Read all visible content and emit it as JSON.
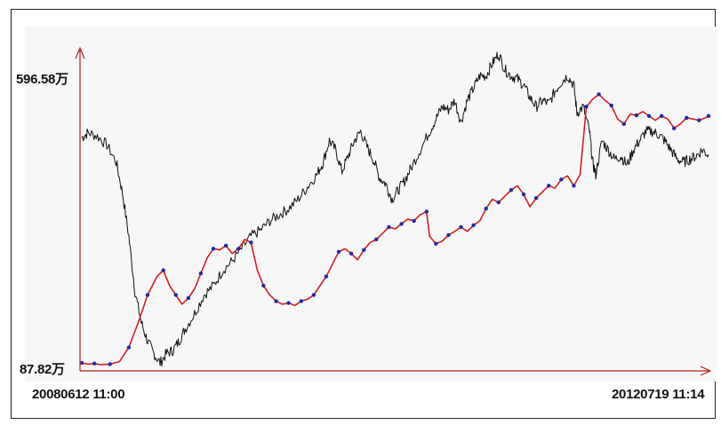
{
  "chart_data": {
    "type": "line",
    "y_axis": {
      "max_label": "596.58万",
      "min_label": "87.82万",
      "max": 596.58,
      "min": 87.82
    },
    "x_axis": {
      "start_label": "20080612 11:00",
      "end_label": "20120719 11:14"
    },
    "x_range": [
      0,
      1
    ],
    "series": [
      {
        "style": "black",
        "color": "#111111",
        "values": [
          [
            0.0,
            460
          ],
          [
            0.01,
            468
          ],
          [
            0.025,
            462
          ],
          [
            0.04,
            448
          ],
          [
            0.055,
            420
          ],
          [
            0.065,
            370
          ],
          [
            0.075,
            300
          ],
          [
            0.085,
            210
          ],
          [
            0.095,
            160
          ],
          [
            0.105,
            130
          ],
          [
            0.115,
            110
          ],
          [
            0.125,
            95
          ],
          [
            0.135,
            110
          ],
          [
            0.145,
            115
          ],
          [
            0.155,
            130
          ],
          [
            0.165,
            150
          ],
          [
            0.18,
            175
          ],
          [
            0.195,
            205
          ],
          [
            0.21,
            220
          ],
          [
            0.225,
            245
          ],
          [
            0.24,
            260
          ],
          [
            0.255,
            280
          ],
          [
            0.27,
            300
          ],
          [
            0.285,
            310
          ],
          [
            0.3,
            325
          ],
          [
            0.315,
            335
          ],
          [
            0.33,
            345
          ],
          [
            0.345,
            360
          ],
          [
            0.36,
            380
          ],
          [
            0.375,
            400
          ],
          [
            0.385,
            420
          ],
          [
            0.395,
            455
          ],
          [
            0.405,
            440
          ],
          [
            0.415,
            405
          ],
          [
            0.425,
            430
          ],
          [
            0.435,
            455
          ],
          [
            0.445,
            470
          ],
          [
            0.455,
            445
          ],
          [
            0.465,
            425
          ],
          [
            0.475,
            395
          ],
          [
            0.485,
            385
          ],
          [
            0.495,
            360
          ],
          [
            0.505,
            375
          ],
          [
            0.515,
            390
          ],
          [
            0.525,
            410
          ],
          [
            0.54,
            440
          ],
          [
            0.555,
            470
          ],
          [
            0.565,
            490
          ],
          [
            0.575,
            510
          ],
          [
            0.585,
            505
          ],
          [
            0.595,
            520
          ],
          [
            0.605,
            485
          ],
          [
            0.615,
            520
          ],
          [
            0.625,
            540
          ],
          [
            0.635,
            560
          ],
          [
            0.645,
            560
          ],
          [
            0.655,
            580
          ],
          [
            0.665,
            596
          ],
          [
            0.675,
            570
          ],
          [
            0.685,
            560
          ],
          [
            0.695,
            555
          ],
          [
            0.705,
            545
          ],
          [
            0.715,
            525
          ],
          [
            0.725,
            510
          ],
          [
            0.735,
            520
          ],
          [
            0.745,
            515
          ],
          [
            0.755,
            535
          ],
          [
            0.765,
            550
          ],
          [
            0.775,
            560
          ],
          [
            0.785,
            545
          ],
          [
            0.79,
            500
          ],
          [
            0.8,
            510
          ],
          [
            0.81,
            470
          ],
          [
            0.815,
            420
          ],
          [
            0.82,
            400
          ],
          [
            0.83,
            455
          ],
          [
            0.84,
            440
          ],
          [
            0.85,
            425
          ],
          [
            0.86,
            430
          ],
          [
            0.87,
            415
          ],
          [
            0.88,
            440
          ],
          [
            0.89,
            455
          ],
          [
            0.9,
            470
          ],
          [
            0.91,
            470
          ],
          [
            0.92,
            465
          ],
          [
            0.93,
            455
          ],
          [
            0.94,
            440
          ],
          [
            0.95,
            425
          ],
          [
            0.96,
            420
          ],
          [
            0.97,
            425
          ],
          [
            0.98,
            430
          ],
          [
            0.99,
            440
          ],
          [
            1.0,
            432
          ]
        ]
      },
      {
        "style": "red-with-blue-markers",
        "color": "#d81e1e",
        "marker_color": "#1e2aa8",
        "values": [
          [
            0.0,
            95
          ],
          [
            0.01,
            93
          ],
          [
            0.02,
            94
          ],
          [
            0.03,
            92
          ],
          [
            0.045,
            93
          ],
          [
            0.06,
            97
          ],
          [
            0.075,
            120
          ],
          [
            0.09,
            160
          ],
          [
            0.105,
            205
          ],
          [
            0.12,
            235
          ],
          [
            0.13,
            245
          ],
          [
            0.14,
            220
          ],
          [
            0.15,
            205
          ],
          [
            0.16,
            190
          ],
          [
            0.17,
            200
          ],
          [
            0.18,
            215
          ],
          [
            0.19,
            240
          ],
          [
            0.2,
            265
          ],
          [
            0.21,
            280
          ],
          [
            0.22,
            278
          ],
          [
            0.23,
            285
          ],
          [
            0.24,
            272
          ],
          [
            0.25,
            280
          ],
          [
            0.26,
            295
          ],
          [
            0.27,
            290
          ],
          [
            0.28,
            245
          ],
          [
            0.29,
            220
          ],
          [
            0.3,
            205
          ],
          [
            0.31,
            195
          ],
          [
            0.32,
            190
          ],
          [
            0.33,
            192
          ],
          [
            0.34,
            188
          ],
          [
            0.35,
            195
          ],
          [
            0.36,
            198
          ],
          [
            0.37,
            205
          ],
          [
            0.38,
            220
          ],
          [
            0.39,
            235
          ],
          [
            0.4,
            255
          ],
          [
            0.41,
            275
          ],
          [
            0.42,
            280
          ],
          [
            0.43,
            272
          ],
          [
            0.44,
            262
          ],
          [
            0.45,
            278
          ],
          [
            0.46,
            290
          ],
          [
            0.47,
            295
          ],
          [
            0.48,
            305
          ],
          [
            0.49,
            315
          ],
          [
            0.5,
            312
          ],
          [
            0.51,
            320
          ],
          [
            0.52,
            328
          ],
          [
            0.53,
            325
          ],
          [
            0.54,
            335
          ],
          [
            0.55,
            340
          ],
          [
            0.555,
            300
          ],
          [
            0.565,
            288
          ],
          [
            0.575,
            292
          ],
          [
            0.585,
            302
          ],
          [
            0.595,
            308
          ],
          [
            0.605,
            315
          ],
          [
            0.615,
            308
          ],
          [
            0.625,
            318
          ],
          [
            0.635,
            325
          ],
          [
            0.645,
            345
          ],
          [
            0.655,
            360
          ],
          [
            0.665,
            355
          ],
          [
            0.675,
            365
          ],
          [
            0.685,
            375
          ],
          [
            0.695,
            382
          ],
          [
            0.705,
            368
          ],
          [
            0.715,
            348
          ],
          [
            0.725,
            362
          ],
          [
            0.735,
            372
          ],
          [
            0.745,
            382
          ],
          [
            0.755,
            378
          ],
          [
            0.765,
            392
          ],
          [
            0.775,
            398
          ],
          [
            0.785,
            382
          ],
          [
            0.795,
            400
          ],
          [
            0.805,
            510
          ],
          [
            0.815,
            522
          ],
          [
            0.825,
            530
          ],
          [
            0.835,
            520
          ],
          [
            0.845,
            512
          ],
          [
            0.855,
            490
          ],
          [
            0.865,
            482
          ],
          [
            0.875,
            498
          ],
          [
            0.885,
            496
          ],
          [
            0.895,
            502
          ],
          [
            0.905,
            495
          ],
          [
            0.915,
            488
          ],
          [
            0.925,
            495
          ],
          [
            0.935,
            490
          ],
          [
            0.945,
            475
          ],
          [
            0.955,
            482
          ],
          [
            0.965,
            492
          ],
          [
            0.975,
            490
          ],
          [
            0.985,
            488
          ],
          [
            0.995,
            492
          ],
          [
            1.0,
            495
          ]
        ]
      }
    ]
  }
}
